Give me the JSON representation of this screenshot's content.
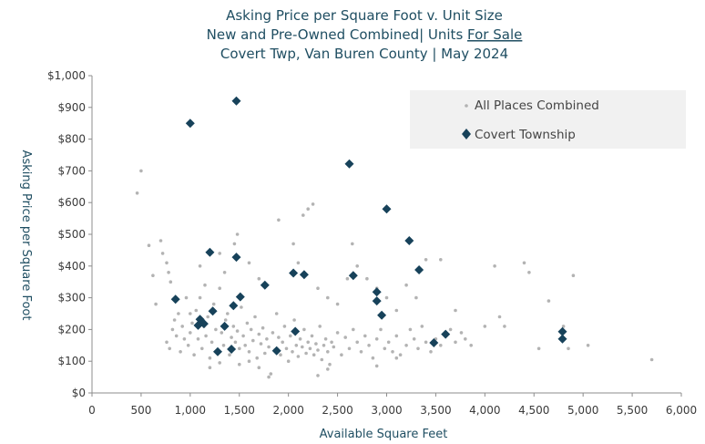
{
  "chart_data": {
    "type": "scatter",
    "title": {
      "line1": "Asking Price per Square Foot v. Unit Size",
      "line2_prefix": "New and Pre-Owned Combined| Units ",
      "line2_underlined": "For Sale",
      "line3": "Covert Twp, Van Buren County  |  May 2024"
    },
    "xlabel": "Available Square Feet",
    "ylabel": "Asking Price per Square Foot",
    "xlim": [
      0,
      6000
    ],
    "ylim": [
      0,
      1000
    ],
    "x_ticks": [
      0,
      500,
      1000,
      1500,
      2000,
      2500,
      3000,
      3500,
      4000,
      4500,
      5000,
      5500,
      6000
    ],
    "x_tick_labels": [
      "0",
      "500",
      "1,000",
      "1,500",
      "2,000",
      "2,500",
      "3,000",
      "3,500",
      "4,000",
      "4,500",
      "5,000",
      "5,500",
      "6,000"
    ],
    "y_ticks": [
      0,
      100,
      200,
      300,
      400,
      500,
      600,
      700,
      800,
      900,
      1000
    ],
    "y_tick_labels": [
      "$0",
      "$100",
      "$200",
      "$300",
      "$400",
      "$500",
      "$600",
      "$700",
      "$800",
      "$900",
      "$1,000"
    ],
    "grid": false,
    "legend": {
      "placement": "top-right"
    },
    "series": [
      {
        "name": "All Places Combined",
        "marker": "dot",
        "color": "#b3b3b3",
        "points": [
          [
            460,
            630
          ],
          [
            500,
            700
          ],
          [
            580,
            465
          ],
          [
            620,
            370
          ],
          [
            650,
            280
          ],
          [
            700,
            480
          ],
          [
            720,
            440
          ],
          [
            760,
            410
          ],
          [
            780,
            380
          ],
          [
            800,
            350
          ],
          [
            760,
            160
          ],
          [
            790,
            140
          ],
          [
            820,
            200
          ],
          [
            840,
            230
          ],
          [
            860,
            180
          ],
          [
            880,
            250
          ],
          [
            900,
            130
          ],
          [
            920,
            210
          ],
          [
            940,
            170
          ],
          [
            960,
            300
          ],
          [
            980,
            150
          ],
          [
            1000,
            190
          ],
          [
            1020,
            220
          ],
          [
            1040,
            120
          ],
          [
            1060,
            260
          ],
          [
            1080,
            170
          ],
          [
            1100,
            300
          ],
          [
            1120,
            140
          ],
          [
            1140,
            210
          ],
          [
            1160,
            180
          ],
          [
            1180,
            240
          ],
          [
            1200,
            110
          ],
          [
            1220,
            160
          ],
          [
            1240,
            280
          ],
          [
            1260,
            200
          ],
          [
            1280,
            130
          ],
          [
            1300,
            330
          ],
          [
            1320,
            190
          ],
          [
            1340,
            150
          ],
          [
            1360,
            230
          ],
          [
            1380,
            250
          ],
          [
            1400,
            120
          ],
          [
            1420,
            175
          ],
          [
            1440,
            210
          ],
          [
            1460,
            160
          ],
          [
            1480,
            195
          ],
          [
            1500,
            140
          ],
          [
            1520,
            270
          ],
          [
            1540,
            180
          ],
          [
            1560,
            150
          ],
          [
            1580,
            220
          ],
          [
            1600,
            130
          ],
          [
            1620,
            200
          ],
          [
            1640,
            165
          ],
          [
            1660,
            240
          ],
          [
            1680,
            110
          ],
          [
            1700,
            185
          ],
          [
            1720,
            155
          ],
          [
            1740,
            205
          ],
          [
            1760,
            125
          ],
          [
            1780,
            170
          ],
          [
            1800,
            145
          ],
          [
            1820,
            60
          ],
          [
            1840,
            190
          ],
          [
            1860,
            135
          ],
          [
            1880,
            250
          ],
          [
            1900,
            175
          ],
          [
            1920,
            120
          ],
          [
            1940,
            160
          ],
          [
            1960,
            210
          ],
          [
            1980,
            140
          ],
          [
            2000,
            100
          ],
          [
            2020,
            180
          ],
          [
            2040,
            130
          ],
          [
            2060,
            230
          ],
          [
            2080,
            150
          ],
          [
            2100,
            115
          ],
          [
            2120,
            170
          ],
          [
            2140,
            145
          ],
          [
            2160,
            200
          ],
          [
            2180,
            125
          ],
          [
            2200,
            160
          ],
          [
            2220,
            140
          ],
          [
            2240,
            180
          ],
          [
            2260,
            120
          ],
          [
            2280,
            155
          ],
          [
            2300,
            135
          ],
          [
            2320,
            210
          ],
          [
            2340,
            105
          ],
          [
            2360,
            150
          ],
          [
            2380,
            170
          ],
          [
            2400,
            130
          ],
          [
            2420,
            90
          ],
          [
            2440,
            160
          ],
          [
            2460,
            145
          ],
          [
            2500,
            190
          ],
          [
            2540,
            120
          ],
          [
            2580,
            175
          ],
          [
            2620,
            140
          ],
          [
            2660,
            200
          ],
          [
            2700,
            160
          ],
          [
            2740,
            130
          ],
          [
            2780,
            180
          ],
          [
            2820,
            150
          ],
          [
            2860,
            110
          ],
          [
            2900,
            170
          ],
          [
            2940,
            200
          ],
          [
            2980,
            140
          ],
          [
            3020,
            160
          ],
          [
            3060,
            130
          ],
          [
            3100,
            180
          ],
          [
            3140,
            120
          ],
          [
            3200,
            150
          ],
          [
            3240,
            200
          ],
          [
            3280,
            170
          ],
          [
            3320,
            140
          ],
          [
            3360,
            210
          ],
          [
            3400,
            160
          ],
          [
            3450,
            130
          ],
          [
            3500,
            170
          ],
          [
            3550,
            150
          ],
          [
            3600,
            180
          ],
          [
            3650,
            200
          ],
          [
            3700,
            160
          ],
          [
            3760,
            190
          ],
          [
            3800,
            170
          ],
          [
            3860,
            150
          ],
          [
            1000,
            250
          ],
          [
            1100,
            400
          ],
          [
            1150,
            340
          ],
          [
            1300,
            440
          ],
          [
            1350,
            380
          ],
          [
            1450,
            470
          ],
          [
            1480,
            500
          ],
          [
            1600,
            410
          ],
          [
            1700,
            360
          ],
          [
            1900,
            545
          ],
          [
            2050,
            470
          ],
          [
            2150,
            560
          ],
          [
            2200,
            580
          ],
          [
            2250,
            595
          ],
          [
            2100,
            410
          ],
          [
            2300,
            330
          ],
          [
            2400,
            300
          ],
          [
            2500,
            280
          ],
          [
            2600,
            360
          ],
          [
            2650,
            470
          ],
          [
            2700,
            400
          ],
          [
            2800,
            360
          ],
          [
            2900,
            330
          ],
          [
            3000,
            300
          ],
          [
            3100,
            260
          ],
          [
            3200,
            340
          ],
          [
            3300,
            300
          ],
          [
            3400,
            420
          ],
          [
            3550,
            420
          ],
          [
            3700,
            260
          ],
          [
            4000,
            210
          ],
          [
            4100,
            400
          ],
          [
            4150,
            240
          ],
          [
            4200,
            210
          ],
          [
            4400,
            410
          ],
          [
            4450,
            380
          ],
          [
            4550,
            140
          ],
          [
            4650,
            290
          ],
          [
            4800,
            210
          ],
          [
            4850,
            140
          ],
          [
            4900,
            370
          ],
          [
            5050,
            150
          ],
          [
            5700,
            105
          ],
          [
            1200,
            80
          ],
          [
            1300,
            95
          ],
          [
            1500,
            90
          ],
          [
            1600,
            100
          ],
          [
            1700,
            80
          ],
          [
            1800,
            50
          ],
          [
            2300,
            55
          ],
          [
            2400,
            75
          ],
          [
            2900,
            85
          ],
          [
            3100,
            110
          ]
        ]
      },
      {
        "name": "Covert Township",
        "marker": "diamond",
        "color": "#17425a",
        "points": [
          [
            1000,
            850
          ],
          [
            1470,
            920
          ],
          [
            2620,
            722
          ],
          [
            3000,
            580
          ],
          [
            3230,
            480
          ],
          [
            3330,
            388
          ],
          [
            2050,
            378
          ],
          [
            2160,
            373
          ],
          [
            2660,
            370
          ],
          [
            1760,
            340
          ],
          [
            1510,
            303
          ],
          [
            1200,
            443
          ],
          [
            1470,
            428
          ],
          [
            1440,
            275
          ],
          [
            1230,
            258
          ],
          [
            1350,
            210
          ],
          [
            1100,
            232
          ],
          [
            1080,
            213
          ],
          [
            1140,
            218
          ],
          [
            1280,
            130
          ],
          [
            1420,
            138
          ],
          [
            1880,
            133
          ],
          [
            2070,
            194
          ],
          [
            2900,
            318
          ],
          [
            2900,
            290
          ],
          [
            2950,
            245
          ],
          [
            3480,
            158
          ],
          [
            3600,
            185
          ],
          [
            4790,
            193
          ],
          [
            4790,
            170
          ],
          [
            850,
            295
          ]
        ]
      }
    ]
  }
}
